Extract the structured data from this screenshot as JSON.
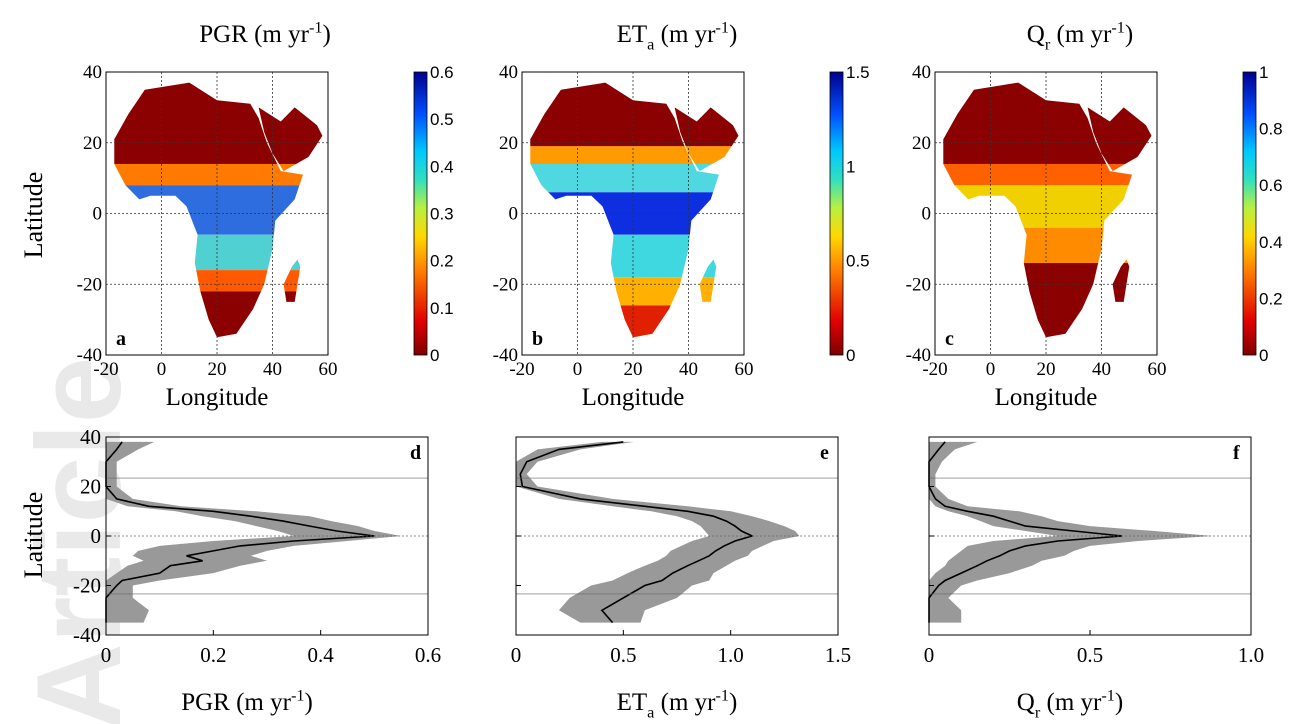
{
  "figure": {
    "watermark_text": "Article",
    "top_titles": [
      {
        "base": "PGR",
        "sub": "",
        "unit": " (m yr",
        "sup": "-1",
        "close": ")"
      },
      {
        "base": "ET",
        "sub": "a",
        "unit": " (m yr",
        "sup": "-1",
        "close": ")"
      },
      {
        "base": "Q",
        "sub": "r",
        "unit": " (m yr",
        "sup": "-1",
        "close": ")"
      }
    ],
    "map_ylabel": "Latitude",
    "map_xlabel": "Longitude",
    "profile_ylabel": "Latitude",
    "panel_letters": [
      "a",
      "b",
      "c",
      "d",
      "e",
      "f"
    ],
    "map_lon_ticks": [
      "-20",
      "0",
      "20",
      "40",
      "60"
    ],
    "map_lat_ticks": [
      "40",
      "20",
      "0",
      "-20",
      "-40"
    ],
    "colorbars": [
      {
        "max": 0.6,
        "ticks": [
          "0.6",
          "0.5",
          "0.4",
          "0.3",
          "0.2",
          "0.1",
          "0"
        ]
      },
      {
        "max": 1.5,
        "ticks": [
          "1.5",
          "1",
          "0.5",
          "0"
        ]
      },
      {
        "max": 1.0,
        "ticks": [
          "1",
          "0.8",
          "0.6",
          "0.4",
          "0.2",
          "0"
        ]
      }
    ],
    "profile_x_ticks": [
      [
        "0",
        "0.2",
        "0.4",
        "0.6"
      ],
      [
        "0",
        "0.5",
        "1.0",
        "1.5"
      ],
      [
        "0",
        "0.5",
        "1.0"
      ]
    ],
    "profile_y_ticks": [
      "40",
      "20",
      "0",
      "-20",
      "-40"
    ],
    "bottom_labels": [
      {
        "base": "PGR",
        "sub": "",
        "unit": " (m yr",
        "sup": "-1",
        "close": ")"
      },
      {
        "base": "ET",
        "sub": "a",
        "unit": " (m yr",
        "sup": "-1",
        "close": ")"
      },
      {
        "base": "Q",
        "sub": "r",
        "unit": " (m yr",
        "sup": "-1",
        "close": ")"
      }
    ]
  },
  "chart_data": [
    {
      "panel": "d",
      "type": "line",
      "xlim": [
        0,
        0.6
      ],
      "ylim": [
        -40,
        40
      ],
      "y": [
        38,
        35,
        30,
        25,
        20,
        15,
        12,
        10,
        8,
        6,
        4,
        2,
        0,
        -2,
        -4,
        -6,
        -8,
        -10,
        -12,
        -15,
        -18,
        -20,
        -25,
        -30,
        -35
      ],
      "mean": [
        0.03,
        0.02,
        0.0,
        0.0,
        0.0,
        0.02,
        0.08,
        0.2,
        0.27,
        0.33,
        0.38,
        0.43,
        0.5,
        0.35,
        0.25,
        0.2,
        0.15,
        0.18,
        0.12,
        0.1,
        0.03,
        0.02,
        0.0,
        0.0,
        0.0
      ],
      "lower": [
        0.0,
        0.0,
        0.0,
        0.0,
        0.0,
        0.0,
        0.04,
        0.13,
        0.18,
        0.24,
        0.28,
        0.32,
        0.35,
        0.2,
        0.1,
        0.06,
        0.05,
        0.07,
        0.04,
        0.02,
        0.0,
        0.0,
        0.0,
        0.0,
        0.0
      ],
      "upper": [
        0.09,
        0.06,
        0.02,
        0.02,
        0.02,
        0.05,
        0.14,
        0.28,
        0.38,
        0.42,
        0.47,
        0.5,
        0.55,
        0.45,
        0.35,
        0.3,
        0.27,
        0.3,
        0.25,
        0.2,
        0.1,
        0.05,
        0.05,
        0.08,
        0.07
      ]
    },
    {
      "panel": "e",
      "type": "line",
      "xlim": [
        0,
        1.5
      ],
      "ylim": [
        -40,
        40
      ],
      "y": [
        38,
        35,
        30,
        25,
        20,
        15,
        12,
        10,
        8,
        6,
        4,
        2,
        0,
        -2,
        -4,
        -6,
        -8,
        -10,
        -12,
        -15,
        -18,
        -20,
        -25,
        -30,
        -35
      ],
      "mean": [
        0.5,
        0.2,
        0.05,
        0.02,
        0.03,
        0.3,
        0.6,
        0.8,
        0.92,
        0.98,
        1.02,
        1.05,
        1.1,
        1.02,
        0.97,
        0.93,
        0.9,
        0.85,
        0.8,
        0.73,
        0.68,
        0.6,
        0.5,
        0.4,
        0.45
      ],
      "lower": [
        0.4,
        0.1,
        0.0,
        0.0,
        0.0,
        0.2,
        0.45,
        0.63,
        0.75,
        0.82,
        0.86,
        0.88,
        0.9,
        0.82,
        0.77,
        0.72,
        0.7,
        0.66,
        0.6,
        0.52,
        0.45,
        0.35,
        0.25,
        0.2,
        0.3
      ],
      "upper": [
        0.55,
        0.3,
        0.1,
        0.05,
        0.1,
        0.45,
        0.8,
        1.0,
        1.1,
        1.18,
        1.25,
        1.3,
        1.32,
        1.2,
        1.15,
        1.1,
        1.08,
        1.02,
        0.98,
        0.92,
        0.9,
        0.82,
        0.75,
        0.6,
        0.58
      ]
    },
    {
      "panel": "f",
      "type": "line",
      "xlim": [
        0,
        1.0
      ],
      "ylim": [
        -40,
        40
      ],
      "y": [
        38,
        35,
        30,
        25,
        20,
        15,
        12,
        10,
        8,
        6,
        4,
        2,
        0,
        -2,
        -4,
        -6,
        -8,
        -10,
        -12,
        -15,
        -18,
        -20,
        -25,
        -30,
        -35
      ],
      "mean": [
        0.05,
        0.03,
        0.0,
        0.0,
        0.0,
        0.02,
        0.05,
        0.12,
        0.2,
        0.25,
        0.3,
        0.45,
        0.6,
        0.4,
        0.3,
        0.25,
        0.22,
        0.18,
        0.15,
        0.1,
        0.05,
        0.03,
        0.0,
        0.0,
        0.0
      ],
      "lower": [
        0.0,
        0.0,
        0.0,
        0.0,
        0.0,
        0.0,
        0.02,
        0.06,
        0.12,
        0.16,
        0.2,
        0.3,
        0.4,
        0.2,
        0.12,
        0.1,
        0.08,
        0.06,
        0.05,
        0.02,
        0.0,
        0.0,
        0.0,
        0.0,
        0.0
      ],
      "upper": [
        0.15,
        0.08,
        0.04,
        0.02,
        0.02,
        0.06,
        0.12,
        0.28,
        0.35,
        0.4,
        0.5,
        0.7,
        0.88,
        0.65,
        0.5,
        0.45,
        0.42,
        0.35,
        0.32,
        0.25,
        0.15,
        0.1,
        0.06,
        0.1,
        0.1
      ]
    }
  ]
}
